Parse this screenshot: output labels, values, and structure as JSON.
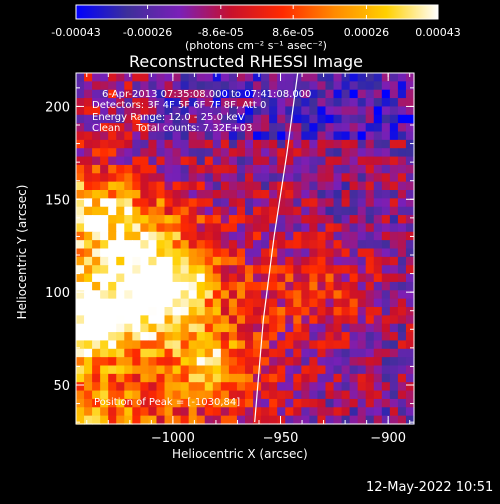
{
  "colorbar": {
    "ticks": [
      "-0.00043",
      "-0.00026",
      "-8.6e-05",
      "8.6e-05",
      "0.00026",
      "0.00043"
    ],
    "tick_values": [
      -0.00043,
      -0.00026,
      -8.6e-05,
      8.6e-05,
      0.00026,
      0.00043
    ],
    "range": [
      -0.00043,
      0.00043
    ],
    "unit_label": "(photons cm⁻² s⁻¹ asec⁻²)"
  },
  "info": {
    "time": "6-Apr-2013 07:35:08.000 to 07:41:08.000",
    "detectors": "Detectors: 3F 4F 5F 6F 7F 8F, Att 0",
    "energy": "Energy Range: 12.0 - 25.0 keV",
    "clean": "Clean     Total counts: 7.32E+03",
    "peak": "Position of Peak = [-1030,84]"
  },
  "footer": {
    "timestamp": "12-May-2022 10:51"
  },
  "chart_data": {
    "type": "heatmap",
    "title": "Reconstructed RHESSI Image",
    "xlabel": "Heliocentric X (arcsec)",
    "ylabel": "Heliocentric Y (arcsec)",
    "xlim": [
      -1045,
      -888
    ],
    "ylim": [
      29,
      218
    ],
    "x_ticks": [
      -1000,
      -950,
      -900
    ],
    "x_tick_labels": [
      "−1000",
      "−950",
      "−900"
    ],
    "y_ticks": [
      50,
      100,
      150,
      200
    ],
    "y_tick_labels": [
      "50",
      "100",
      "150",
      "200"
    ],
    "peak_position": [
      -1030,
      84
    ],
    "limb_line": [
      [
        -962,
        30
      ],
      [
        -958,
        85
      ],
      [
        -953,
        130
      ],
      [
        -947,
        175
      ],
      [
        -942,
        218
      ]
    ],
    "colormap": [
      "#0000ff",
      "#3d2f9a",
      "#7a1fb8",
      "#c8102c",
      "#ff2a00",
      "#ff8a00",
      "#ffd000",
      "#ffffff"
    ]
  }
}
